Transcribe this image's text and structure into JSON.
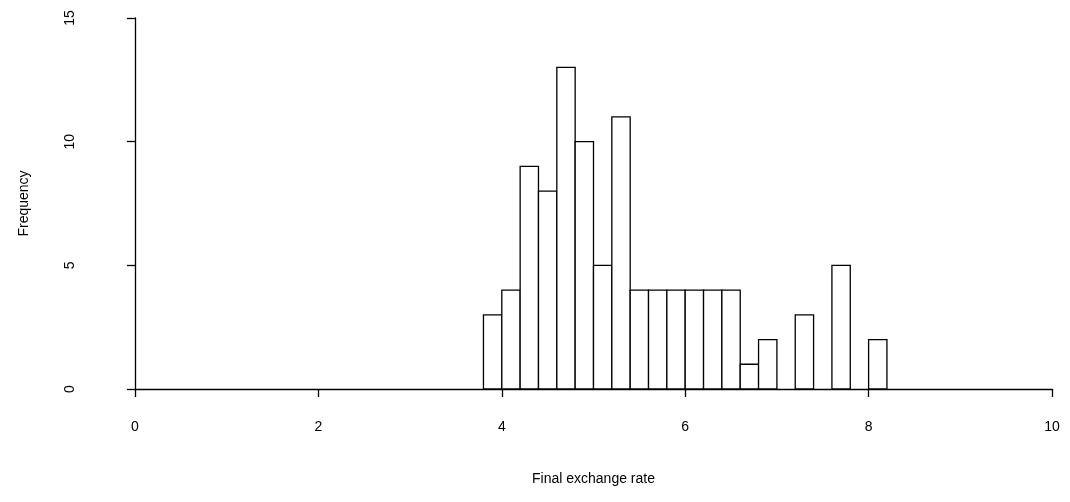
{
  "chart_data": {
    "type": "histogram",
    "xlabel": "Final exchange rate",
    "ylabel": "Frequency",
    "bins": [
      3.8,
      4.0,
      4.2,
      4.4,
      4.6,
      4.8,
      5.0,
      5.2,
      5.4,
      5.6,
      5.8,
      6.0,
      6.2,
      6.4,
      6.6,
      6.8,
      7.0,
      7.2,
      7.4,
      7.6,
      7.8,
      8.0,
      8.2
    ],
    "values": [
      3,
      4,
      9,
      8,
      13,
      10,
      5,
      11,
      4,
      4,
      4,
      4,
      4,
      4,
      1,
      2,
      0,
      3,
      0,
      5,
      0,
      2
    ],
    "color": "#ffffff",
    "xlim": [
      0,
      10
    ],
    "xticks": [
      0,
      2,
      4,
      6,
      8,
      10
    ],
    "ylim": [
      0,
      15
    ],
    "yticks": [
      0,
      5,
      10,
      15
    ],
    "grid": false
  }
}
